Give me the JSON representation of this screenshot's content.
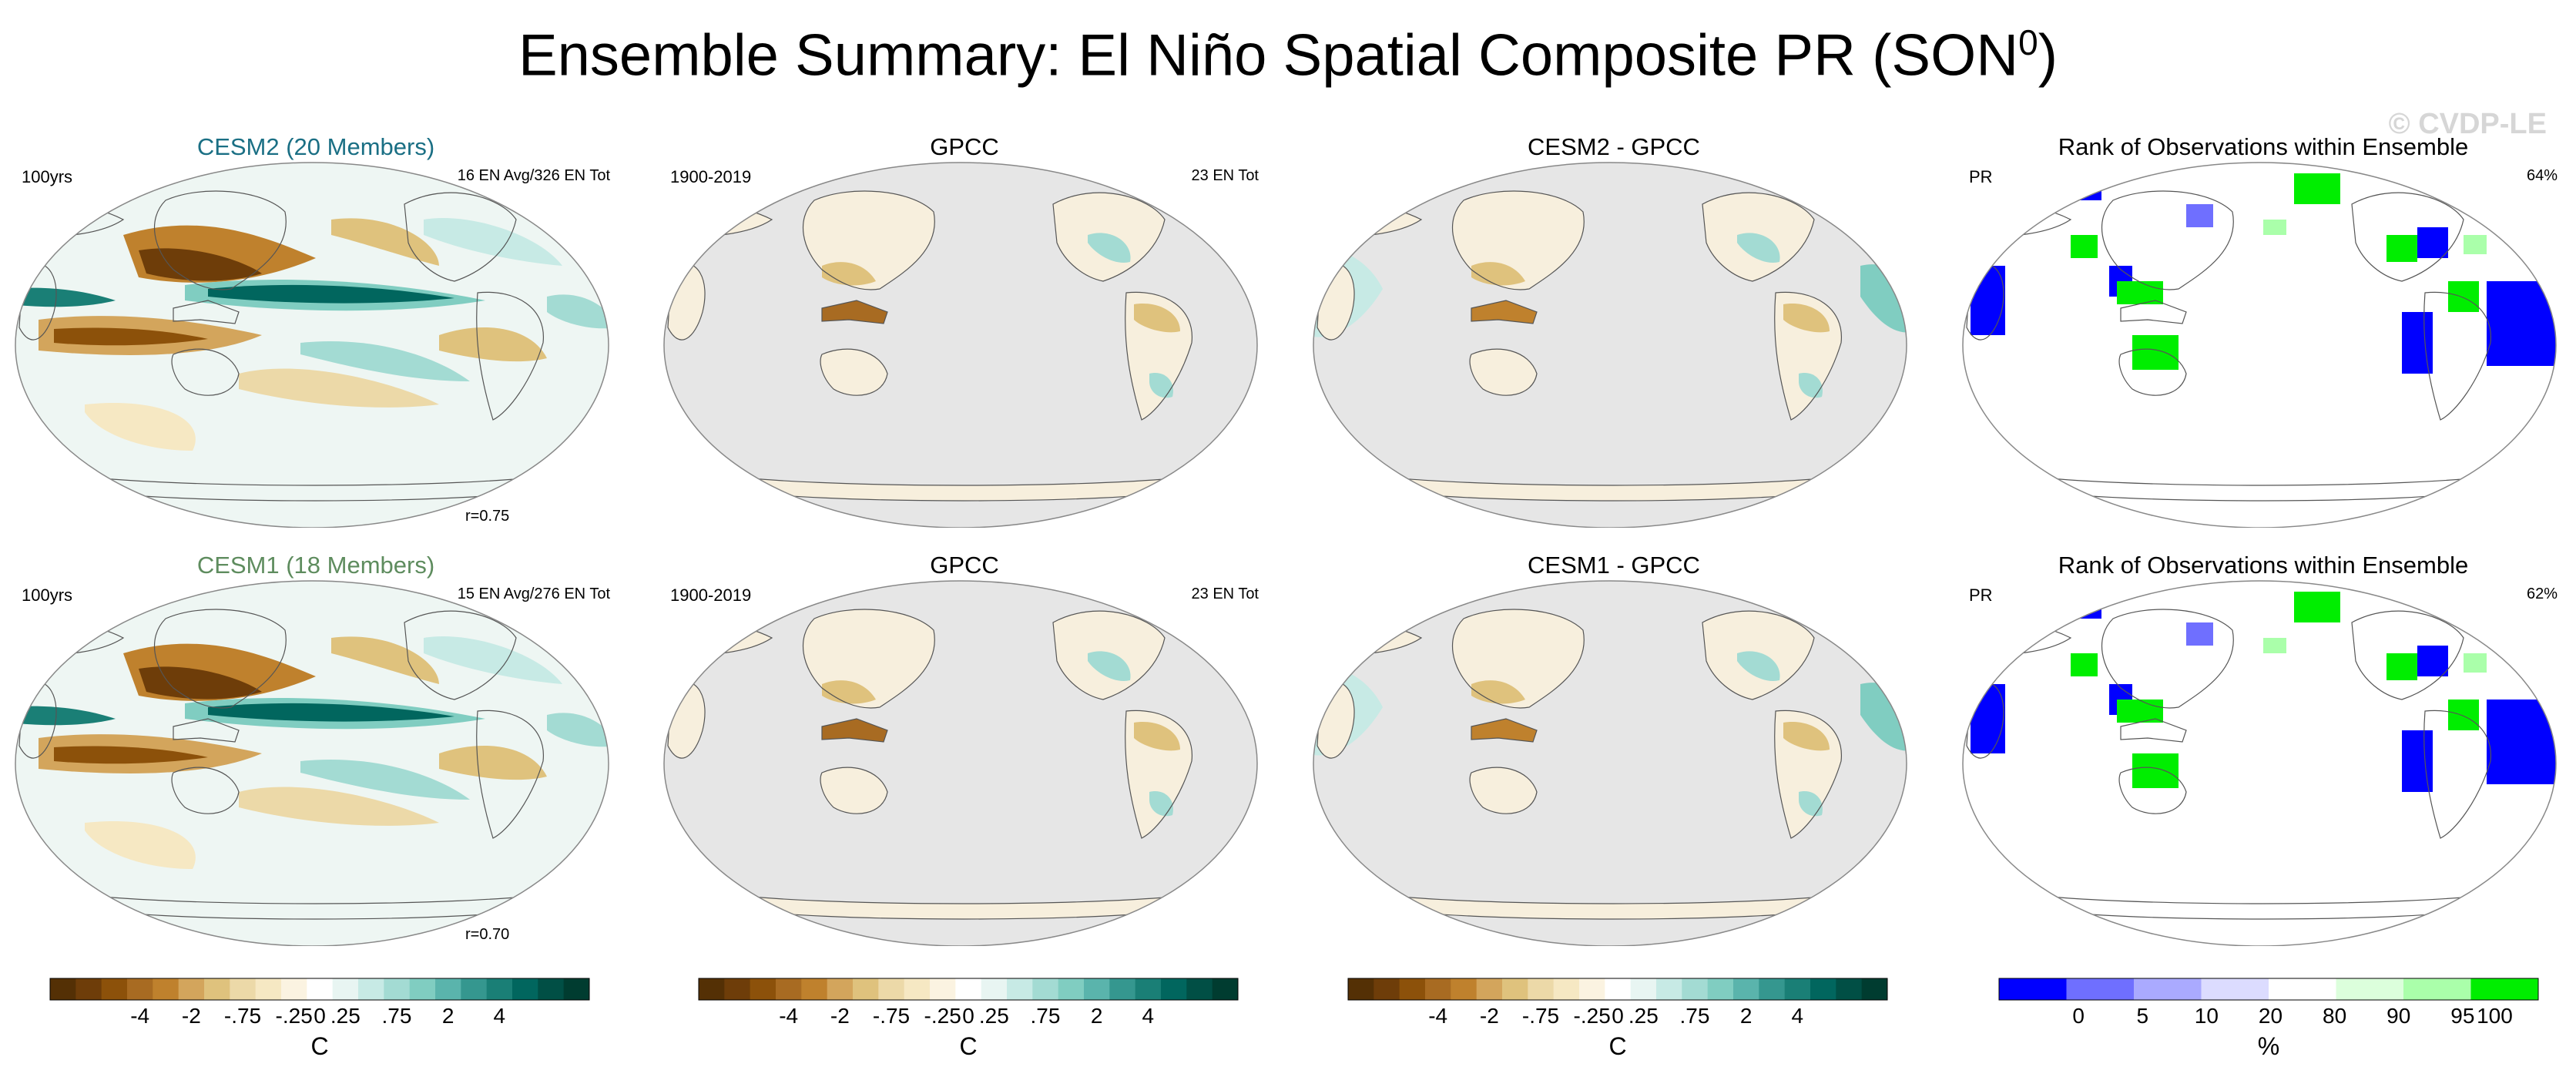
{
  "title_main": "Ensemble Summary: El Niño Spatial Composite PR (SON",
  "title_sup": "0",
  "title_end": ")",
  "watermark": "© CVDP-LE",
  "panels": [
    {
      "id": "p1",
      "title": "CESM2 (20 Members)",
      "title_color": "#1a6f84",
      "left": "100yrs",
      "right": "16 EN Avg/326 EN Tot",
      "bottom": "r=0.75",
      "kind": "model"
    },
    {
      "id": "p2",
      "title": "GPCC",
      "title_color": "#000000",
      "left": "1900-2019",
      "right": "23 EN Tot",
      "bottom": "",
      "kind": "obs"
    },
    {
      "id": "p3",
      "title": "CESM2 - GPCC",
      "title_color": "#000000",
      "left": "",
      "right": "",
      "bottom": "",
      "kind": "diff"
    },
    {
      "id": "p4",
      "title": "Rank of Observations within Ensemble",
      "title_color": "#000000",
      "left": "PR",
      "right": "64%",
      "bottom": "",
      "kind": "rank"
    },
    {
      "id": "p5",
      "title": "CESM1 (18 Members)",
      "title_color": "#5e8c5e",
      "left": "100yrs",
      "right": "15 EN Avg/276 EN Tot",
      "bottom": "r=0.70",
      "kind": "model"
    },
    {
      "id": "p6",
      "title": "GPCC",
      "title_color": "#000000",
      "left": "1900-2019",
      "right": "23 EN Tot",
      "bottom": "",
      "kind": "obs"
    },
    {
      "id": "p7",
      "title": "CESM1 - GPCC",
      "title_color": "#000000",
      "left": "",
      "right": "",
      "bottom": "",
      "kind": "diff"
    },
    {
      "id": "p8",
      "title": "Rank of Observations within Ensemble",
      "title_color": "#000000",
      "left": "PR",
      "right": "62%",
      "bottom": "",
      "kind": "rank"
    }
  ],
  "colorbars": [
    {
      "id": "cb1",
      "unit": "C",
      "type": "precip"
    },
    {
      "id": "cb2",
      "unit": "C",
      "type": "precip"
    },
    {
      "id": "cb3",
      "unit": "C",
      "type": "precip"
    },
    {
      "id": "cb4",
      "unit": "%",
      "type": "rank"
    }
  ],
  "chart_data": {
    "type": "heatmap",
    "title": "Ensemble Summary: El Niño Spatial Composite PR (SON0)",
    "precip_colorbar": {
      "colors": [
        "#543005",
        "#6e3d09",
        "#8c510a",
        "#a86b22",
        "#bf812d",
        "#d3a55c",
        "#dfc27d",
        "#ecd9a8",
        "#f6e8c3",
        "#fbf3e1",
        "#ffffff",
        "#e8f5f2",
        "#c7eae5",
        "#a3dbd3",
        "#80cdc1",
        "#5ab4ac",
        "#35978f",
        "#1a7f76",
        "#01665e",
        "#014f45",
        "#003c30"
      ],
      "tick_labels": [
        "-4",
        "-2",
        "-.75",
        "-.25",
        "0",
        ".25",
        ".75",
        "2",
        "4"
      ],
      "unit": "C"
    },
    "rank_colorbar": {
      "colors": [
        "#0000ff",
        "#6f6fff",
        "#aaaaff",
        "#dcdcff",
        "#ffffff",
        "#dcffdc",
        "#aaffaa",
        "#00ee00"
      ],
      "tick_labels": [
        "0",
        "5",
        "10",
        "20",
        "80",
        "90",
        "95",
        "100"
      ],
      "unit": "%"
    }
  }
}
